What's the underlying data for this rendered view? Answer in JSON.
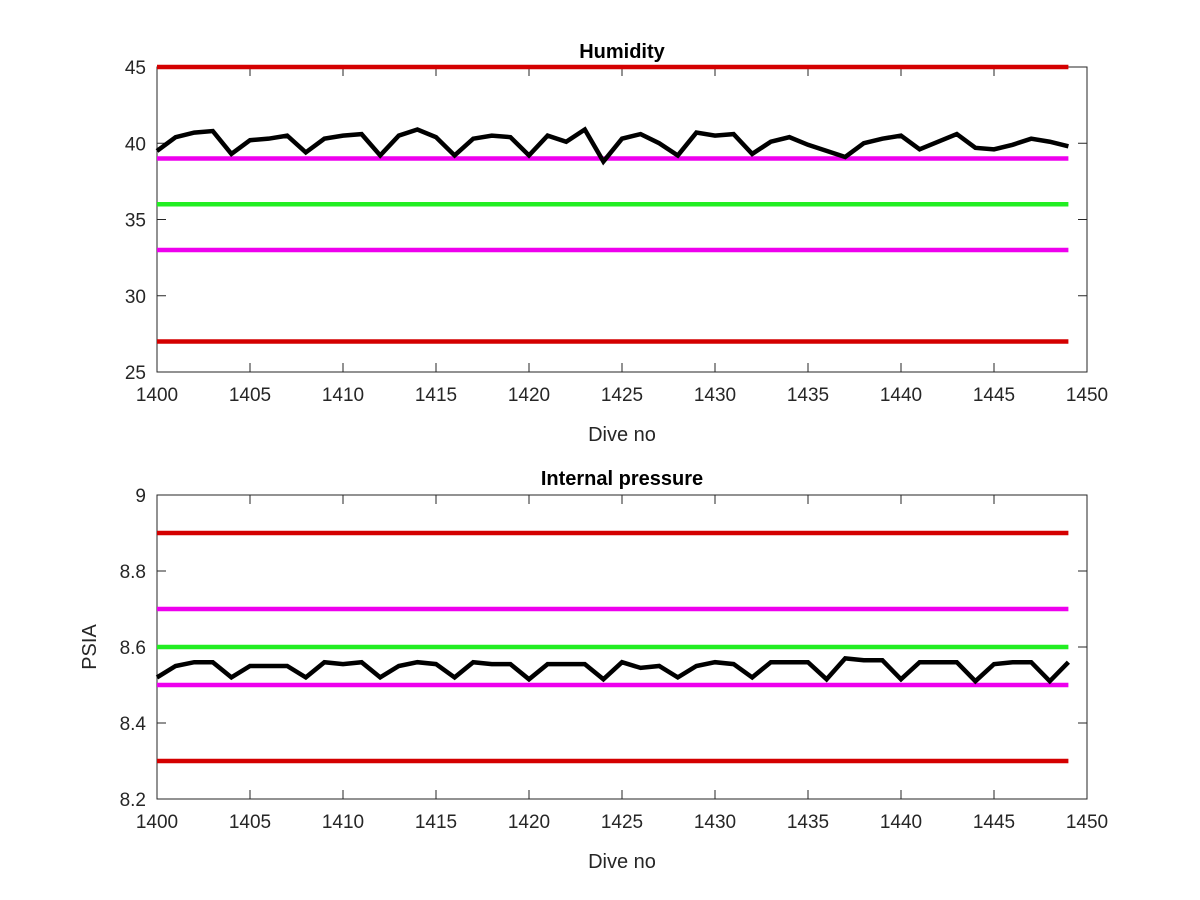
{
  "chart_data": [
    {
      "type": "line",
      "title": "Humidity",
      "xlabel": "Dive no",
      "ylabel": "",
      "xlim": [
        1400,
        1450
      ],
      "ylim": [
        25,
        45
      ],
      "xticks": [
        1400,
        1405,
        1410,
        1415,
        1420,
        1425,
        1430,
        1435,
        1440,
        1445,
        1450
      ],
      "yticks": [
        25,
        30,
        35,
        40,
        45
      ],
      "grid": false,
      "reference_lines": [
        {
          "y": 45,
          "color": "#d40000"
        },
        {
          "y": 39,
          "color": "#ee00ee"
        },
        {
          "y": 36,
          "color": "#22ee22"
        },
        {
          "y": 33,
          "color": "#ee00ee"
        },
        {
          "y": 27,
          "color": "#d40000"
        }
      ],
      "series": [
        {
          "color": "#000000",
          "x": [
            1400,
            1401,
            1402,
            1403,
            1404,
            1405,
            1406,
            1407,
            1408,
            1409,
            1410,
            1411,
            1412,
            1413,
            1414,
            1415,
            1416,
            1417,
            1418,
            1419,
            1420,
            1421,
            1422,
            1423,
            1424,
            1425,
            1426,
            1427,
            1428,
            1429,
            1430,
            1431,
            1432,
            1433,
            1434,
            1435,
            1436,
            1437,
            1438,
            1439,
            1440,
            1441,
            1442,
            1443,
            1444,
            1445,
            1446,
            1447,
            1448,
            1449
          ],
          "y": [
            39.5,
            40.4,
            40.7,
            40.8,
            39.3,
            40.2,
            40.3,
            40.5,
            39.4,
            40.3,
            40.5,
            40.6,
            39.2,
            40.5,
            40.9,
            40.4,
            39.2,
            40.3,
            40.5,
            40.4,
            39.2,
            40.5,
            40.1,
            40.9,
            38.8,
            40.3,
            40.6,
            40.0,
            39.2,
            40.7,
            40.5,
            40.6,
            39.3,
            40.1,
            40.4,
            39.9,
            39.5,
            39.1,
            40.0,
            40.3,
            40.5,
            39.6,
            40.1,
            40.6,
            39.7,
            39.6,
            39.9,
            40.3,
            40.1,
            39.8
          ]
        }
      ]
    },
    {
      "type": "line",
      "title": "Internal pressure",
      "xlabel": "Dive no",
      "ylabel": "PSIA",
      "xlim": [
        1400,
        1450
      ],
      "ylim": [
        8.2,
        9.0
      ],
      "xticks": [
        1400,
        1405,
        1410,
        1415,
        1420,
        1425,
        1430,
        1435,
        1440,
        1445,
        1450
      ],
      "yticks": [
        "8.2",
        "8.4",
        "8.6",
        "8.8",
        "9"
      ],
      "grid": false,
      "reference_lines": [
        {
          "y": 8.9,
          "color": "#d40000"
        },
        {
          "y": 8.7,
          "color": "#ee00ee"
        },
        {
          "y": 8.6,
          "color": "#22ee22"
        },
        {
          "y": 8.5,
          "color": "#ee00ee"
        },
        {
          "y": 8.3,
          "color": "#d40000"
        }
      ],
      "series": [
        {
          "color": "#000000",
          "x": [
            1400,
            1401,
            1402,
            1403,
            1404,
            1405,
            1406,
            1407,
            1408,
            1409,
            1410,
            1411,
            1412,
            1413,
            1414,
            1415,
            1416,
            1417,
            1418,
            1419,
            1420,
            1421,
            1422,
            1423,
            1424,
            1425,
            1426,
            1427,
            1428,
            1429,
            1430,
            1431,
            1432,
            1433,
            1434,
            1435,
            1436,
            1437,
            1438,
            1439,
            1440,
            1441,
            1442,
            1443,
            1444,
            1445,
            1446,
            1447,
            1448,
            1449
          ],
          "y": [
            8.52,
            8.55,
            8.56,
            8.56,
            8.52,
            8.55,
            8.55,
            8.55,
            8.52,
            8.56,
            8.555,
            8.56,
            8.52,
            8.55,
            8.56,
            8.555,
            8.52,
            8.56,
            8.555,
            8.555,
            8.515,
            8.555,
            8.555,
            8.555,
            8.515,
            8.56,
            8.545,
            8.55,
            8.52,
            8.55,
            8.56,
            8.555,
            8.52,
            8.56,
            8.56,
            8.56,
            8.515,
            8.57,
            8.565,
            8.565,
            8.515,
            8.56,
            8.56,
            8.56,
            8.51,
            8.555,
            8.56,
            8.56,
            8.51,
            8.56
          ]
        }
      ]
    }
  ]
}
